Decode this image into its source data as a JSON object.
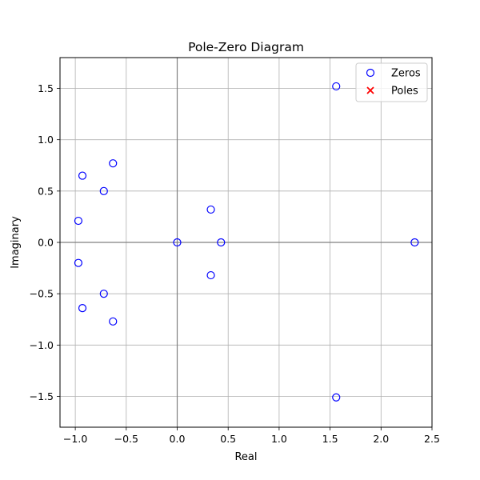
{
  "chart_data": {
    "type": "scatter",
    "title": "Pole-Zero Diagram",
    "xlabel": "Real",
    "ylabel": "Imaginary",
    "xlim": [
      -1.15,
      2.5
    ],
    "ylim": [
      -1.8,
      1.8
    ],
    "xticks": [
      -1.0,
      -0.5,
      0.0,
      0.5,
      1.0,
      1.5,
      2.0,
      2.5
    ],
    "xtick_labels": [
      "−1.0",
      "−0.5",
      "0.0",
      "0.5",
      "1.0",
      "1.5",
      "2.0",
      "2.5"
    ],
    "yticks": [
      -1.5,
      -1.0,
      -0.5,
      0.0,
      0.5,
      1.0,
      1.5
    ],
    "ytick_labels": [
      "−1.5",
      "−1.0",
      "−0.5",
      "0.0",
      "0.5",
      "1.0",
      "1.5"
    ],
    "grid": true,
    "legend_position": "top-right",
    "series": [
      {
        "name": "Zeros",
        "marker": "circle-open",
        "color": "#0000ff",
        "points": [
          [
            1.56,
            1.52
          ],
          [
            1.56,
            -1.51
          ],
          [
            -0.63,
            0.77
          ],
          [
            -0.63,
            -0.77
          ],
          [
            -0.93,
            0.65
          ],
          [
            -0.93,
            -0.64
          ],
          [
            -0.72,
            0.5
          ],
          [
            -0.72,
            -0.5
          ],
          [
            -0.97,
            0.21
          ],
          [
            -0.97,
            -0.2
          ],
          [
            0.33,
            0.32
          ],
          [
            0.33,
            -0.32
          ],
          [
            0.0,
            0.0
          ],
          [
            0.43,
            0.0
          ],
          [
            2.33,
            0.0
          ]
        ]
      },
      {
        "name": "Poles",
        "marker": "x",
        "color": "#ff0000",
        "points": []
      }
    ]
  }
}
